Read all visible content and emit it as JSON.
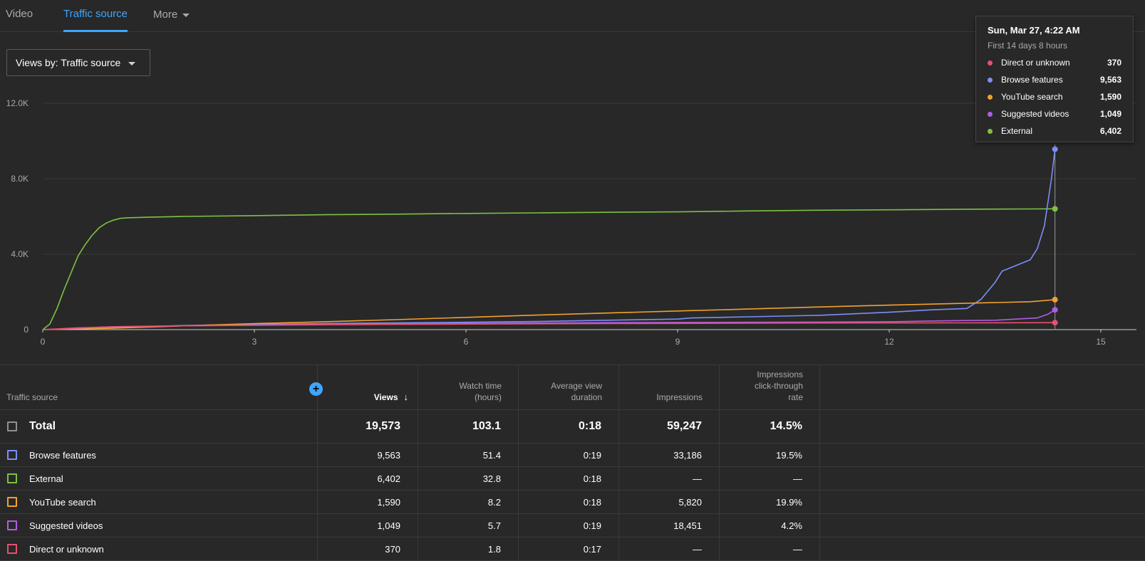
{
  "tabs": [
    {
      "label": "Video"
    },
    {
      "label": "Traffic source"
    },
    {
      "label": "More"
    }
  ],
  "view_selector": {
    "label": "Views by: Traffic source"
  },
  "tooltip": {
    "title": "Sun, Mar 27, 4:22 AM",
    "subtitle": "First 14 days 8 hours",
    "rows": [
      {
        "name": "Direct or unknown",
        "value": "370",
        "color": "#e8506f"
      },
      {
        "name": "Browse features",
        "value": "9,563",
        "color": "#7b8ff7"
      },
      {
        "name": "YouTube search",
        "value": "1,590",
        "color": "#f2a12e"
      },
      {
        "name": "Suggested videos",
        "value": "1,049",
        "color": "#b05ce6"
      },
      {
        "name": "External",
        "value": "6,402",
        "color": "#7cc242"
      }
    ]
  },
  "chart_data": {
    "type": "line",
    "x_ticks": [
      "0",
      "3",
      "6",
      "9",
      "12",
      "15"
    ],
    "y_ticks": [
      "0",
      "4.0K",
      "8.0K",
      "12.0K"
    ],
    "xlim": [
      0,
      15.5
    ],
    "ylim": [
      0,
      12000
    ],
    "grid": true,
    "cursor_x": 14.35,
    "series": [
      {
        "name": "External",
        "color": "#7cc242",
        "points": [
          [
            0,
            0
          ],
          [
            0.1,
            300
          ],
          [
            0.2,
            1100
          ],
          [
            0.3,
            2100
          ],
          [
            0.4,
            3000
          ],
          [
            0.5,
            3900
          ],
          [
            0.6,
            4500
          ],
          [
            0.7,
            5000
          ],
          [
            0.8,
            5400
          ],
          [
            0.9,
            5650
          ],
          [
            1.0,
            5800
          ],
          [
            1.1,
            5900
          ],
          [
            1.2,
            5930
          ],
          [
            1.5,
            5960
          ],
          [
            2,
            6000
          ],
          [
            3,
            6040
          ],
          [
            4,
            6090
          ],
          [
            5,
            6120
          ],
          [
            6,
            6160
          ],
          [
            7,
            6190
          ],
          [
            8,
            6220
          ],
          [
            9,
            6240
          ],
          [
            10,
            6290
          ],
          [
            11,
            6330
          ],
          [
            12,
            6350
          ],
          [
            13,
            6380
          ],
          [
            14,
            6395
          ],
          [
            14.35,
            6402
          ]
        ]
      },
      {
        "name": "Browse features",
        "color": "#7b8ff7",
        "points": [
          [
            0,
            0
          ],
          [
            0.5,
            60
          ],
          [
            1,
            120
          ],
          [
            2,
            220
          ],
          [
            3,
            280
          ],
          [
            4,
            320
          ],
          [
            5,
            360
          ],
          [
            6,
            390
          ],
          [
            7,
            430
          ],
          [
            8,
            500
          ],
          [
            9,
            560
          ],
          [
            9.2,
            620
          ],
          [
            10,
            680
          ],
          [
            11,
            760
          ],
          [
            12,
            920
          ],
          [
            12.6,
            1050
          ],
          [
            13.1,
            1120
          ],
          [
            13.3,
            1600
          ],
          [
            13.5,
            2500
          ],
          [
            13.6,
            3100
          ],
          [
            13.8,
            3400
          ],
          [
            14.0,
            3700
          ],
          [
            14.1,
            4300
          ],
          [
            14.2,
            5500
          ],
          [
            14.3,
            8000
          ],
          [
            14.35,
            9563
          ]
        ]
      },
      {
        "name": "YouTube search",
        "color": "#f2a12e",
        "points": [
          [
            0,
            0
          ],
          [
            1,
            80
          ],
          [
            2,
            200
          ],
          [
            3,
            320
          ],
          [
            4,
            420
          ],
          [
            5,
            530
          ],
          [
            6,
            650
          ],
          [
            7,
            770
          ],
          [
            8,
            880
          ],
          [
            9,
            990
          ],
          [
            10,
            1090
          ],
          [
            11,
            1200
          ],
          [
            12,
            1300
          ],
          [
            13,
            1390
          ],
          [
            14,
            1480
          ],
          [
            14.35,
            1590
          ]
        ]
      },
      {
        "name": "Suggested videos",
        "color": "#b05ce6",
        "points": [
          [
            0,
            0
          ],
          [
            0.5,
            80
          ],
          [
            1,
            160
          ],
          [
            2,
            200
          ],
          [
            3,
            240
          ],
          [
            4,
            280
          ],
          [
            5,
            310
          ],
          [
            6,
            330
          ],
          [
            7,
            350
          ],
          [
            8,
            370
          ],
          [
            9,
            380
          ],
          [
            10,
            390
          ],
          [
            11,
            400
          ],
          [
            12,
            420
          ],
          [
            12.5,
            450
          ],
          [
            13,
            480
          ],
          [
            13.5,
            500
          ],
          [
            13.8,
            560
          ],
          [
            14.1,
            620
          ],
          [
            14.25,
            820
          ],
          [
            14.35,
            1049
          ]
        ]
      },
      {
        "name": "Direct or unknown",
        "color": "#e8506f",
        "points": [
          [
            0,
            0
          ],
          [
            0.5,
            100
          ],
          [
            1,
            150
          ],
          [
            2,
            200
          ],
          [
            3,
            230
          ],
          [
            4,
            260
          ],
          [
            5,
            280
          ],
          [
            6,
            295
          ],
          [
            7,
            310
          ],
          [
            8,
            320
          ],
          [
            9,
            330
          ],
          [
            10,
            340
          ],
          [
            11,
            350
          ],
          [
            12,
            355
          ],
          [
            13,
            360
          ],
          [
            14,
            365
          ],
          [
            14.35,
            370
          ]
        ]
      }
    ]
  },
  "table": {
    "headers": {
      "source": "Traffic source",
      "views": "Views",
      "watch_time": [
        "Watch time",
        "(hours)"
      ],
      "avg_duration": [
        "Average view",
        "duration"
      ],
      "impressions": "Impressions",
      "ctr": [
        "Impressions",
        "click-through",
        "rate"
      ]
    },
    "plus_label": "+",
    "sort_arrow": "↓",
    "total": {
      "name": "Total",
      "views": "19,573",
      "watch": "103.1",
      "avg": "0:18",
      "impr": "59,247",
      "ctr": "14.5%"
    },
    "rows": [
      {
        "name": "Browse features",
        "views": "9,563",
        "watch": "51.4",
        "avg": "0:19",
        "impr": "33,186",
        "ctr": "19.5%",
        "color": "#7b8ff7"
      },
      {
        "name": "External",
        "views": "6,402",
        "watch": "32.8",
        "avg": "0:18",
        "impr": "—",
        "ctr": "—",
        "color": "#7cc242"
      },
      {
        "name": "YouTube search",
        "views": "1,590",
        "watch": "8.2",
        "avg": "0:18",
        "impr": "5,820",
        "ctr": "19.9%",
        "color": "#f2a12e"
      },
      {
        "name": "Suggested videos",
        "views": "1,049",
        "watch": "5.7",
        "avg": "0:19",
        "impr": "18,451",
        "ctr": "4.2%",
        "color": "#b05ce6"
      },
      {
        "name": "Direct or unknown",
        "views": "370",
        "watch": "1.8",
        "avg": "0:17",
        "impr": "—",
        "ctr": "—",
        "color": "#e8506f"
      }
    ]
  }
}
